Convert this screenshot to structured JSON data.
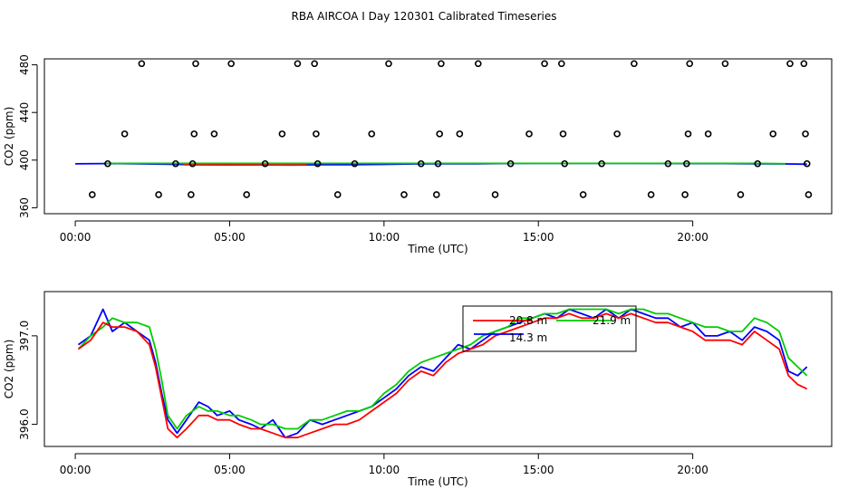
{
  "title": "RBA AIRCOA I  Day 120301  Calibrated Timeseries",
  "chart_data": [
    {
      "type": "scatter",
      "xlabel": "Time (UTC)",
      "ylabel": "CO2 (ppm)",
      "xlim": [
        -1,
        24.5
      ],
      "ylim": [
        355,
        485
      ],
      "x_ticks": [
        0,
        5,
        10,
        15,
        20
      ],
      "x_tick_labels": [
        "00:00",
        "05:00",
        "10:00",
        "15:00",
        "20:00"
      ],
      "y_ticks": [
        360,
        400,
        440,
        480
      ],
      "y_tick_labels": [
        "360",
        "400",
        "440",
        "480"
      ],
      "grid": false,
      "points": {
        "x": [
          0.55,
          1.05,
          1.6,
          2.15,
          2.7,
          3.25,
          3.75,
          3.8,
          3.85,
          3.9,
          4.5,
          5.05,
          5.55,
          6.15,
          6.7,
          7.2,
          7.75,
          7.8,
          7.85,
          8.5,
          9.05,
          9.6,
          10.15,
          10.65,
          11.2,
          11.7,
          11.75,
          11.8,
          11.85,
          12.45,
          13.05,
          13.6,
          14.1,
          14.7,
          15.2,
          15.75,
          15.8,
          15.85,
          16.45,
          17.05,
          17.55,
          18.1,
          18.65,
          19.2,
          19.75,
          19.8,
          19.85,
          19.9,
          20.5,
          21.05,
          21.55,
          22.1,
          22.6,
          23.15,
          23.6,
          23.65,
          23.7,
          23.75
        ],
        "y": [
          371,
          397,
          422,
          481,
          371,
          397,
          371,
          397,
          422,
          481,
          422,
          481,
          371,
          397,
          422,
          481,
          481,
          422,
          397,
          371,
          397,
          422,
          481,
          371,
          397,
          371,
          397,
          422,
          481,
          422,
          481,
          371,
          397,
          422,
          481,
          481,
          422,
          397,
          371,
          397,
          422,
          481,
          371,
          397,
          371,
          397,
          422,
          481,
          422,
          481,
          371,
          397,
          422,
          481,
          481,
          422,
          397,
          371
        ]
      },
      "series": [
        {
          "name": "",
          "color": "#0000ff",
          "x": [
            0,
            1,
            2,
            3,
            4,
            5,
            6,
            7,
            8,
            9,
            10,
            11,
            12,
            13,
            14,
            15,
            16,
            17,
            18,
            19,
            20,
            21,
            22,
            23,
            23.7
          ],
          "y": [
            396.9,
            397.1,
            397.0,
            396.6,
            396.2,
            396.0,
            396.0,
            395.9,
            396.1,
            396.2,
            396.4,
            396.8,
            397.0,
            397.0,
            397.2,
            397.3,
            397.3,
            397.3,
            397.3,
            397.2,
            397.1,
            397.1,
            397.0,
            396.8,
            396.6
          ]
        },
        {
          "name": "",
          "color": "#ff0000",
          "x": [
            3.5,
            4.5,
            6.5,
            7.5
          ],
          "y": [
            396.1,
            396.1,
            396.0,
            395.9
          ]
        },
        {
          "name": "",
          "color": "#00cc00",
          "x": [
            1.0,
            2.0,
            22.0,
            23.0
          ],
          "y": [
            397.2,
            397.3,
            397.3,
            397.0
          ]
        }
      ]
    },
    {
      "type": "line",
      "xlabel": "Time (UTC)",
      "ylabel": "CO2 (ppm)",
      "xlim": [
        -1,
        24.5
      ],
      "ylim": [
        395.75,
        397.5
      ],
      "x_ticks": [
        0,
        5,
        10,
        15,
        20
      ],
      "x_tick_labels": [
        "00:00",
        "05:00",
        "10:00",
        "15:00",
        "20:00"
      ],
      "y_ticks": [
        396.0,
        397.0
      ],
      "y_tick_labels": [
        "396.0",
        "397.0"
      ],
      "grid": false,
      "legend_position": "top-center",
      "series": [
        {
          "name": "14.3 m",
          "color": "#0000ff",
          "x": [
            0.1,
            0.5,
            0.9,
            1.2,
            1.6,
            2.0,
            2.4,
            2.6,
            2.8,
            3.0,
            3.3,
            3.6,
            4.0,
            4.3,
            4.6,
            5.0,
            5.3,
            5.7,
            6.0,
            6.4,
            6.8,
            7.2,
            7.6,
            8.0,
            8.4,
            8.8,
            9.2,
            9.6,
            10.0,
            10.4,
            10.8,
            11.2,
            11.6,
            12.0,
            12.4,
            12.8,
            13.2,
            13.6,
            14.0,
            14.4,
            14.8,
            15.2,
            15.6,
            16.0,
            16.4,
            16.8,
            17.2,
            17.6,
            18.0,
            18.4,
            18.8,
            19.2,
            19.6,
            20.0,
            20.4,
            20.8,
            21.2,
            21.6,
            22.0,
            22.4,
            22.8,
            23.1,
            23.4,
            23.7
          ],
          "y": [
            396.9,
            397.0,
            397.3,
            397.05,
            397.15,
            397.05,
            396.95,
            396.7,
            396.35,
            396.05,
            395.9,
            396.05,
            396.25,
            396.2,
            396.1,
            396.15,
            396.05,
            396.0,
            395.95,
            396.05,
            395.85,
            395.9,
            396.05,
            396.0,
            396.05,
            396.1,
            396.15,
            396.2,
            396.3,
            396.4,
            396.55,
            396.65,
            396.6,
            396.75,
            396.9,
            396.85,
            396.95,
            397.05,
            397.1,
            397.15,
            397.2,
            397.25,
            397.2,
            397.3,
            397.25,
            397.2,
            397.3,
            397.2,
            397.3,
            397.25,
            397.2,
            397.2,
            397.1,
            397.15,
            397.0,
            397.0,
            397.05,
            396.95,
            397.1,
            397.05,
            396.95,
            396.6,
            396.55,
            396.65
          ]
        },
        {
          "name": "21.9 m",
          "color": "#00cc00",
          "x": [
            0.1,
            0.5,
            0.9,
            1.2,
            1.6,
            2.0,
            2.4,
            2.6,
            2.8,
            3.0,
            3.3,
            3.6,
            4.0,
            4.3,
            4.6,
            5.0,
            5.3,
            5.7,
            6.0,
            6.4,
            6.8,
            7.2,
            7.6,
            8.0,
            8.4,
            8.8,
            9.2,
            9.6,
            10.0,
            10.4,
            10.8,
            11.2,
            11.6,
            12.0,
            12.4,
            12.8,
            13.2,
            13.6,
            14.0,
            14.4,
            14.8,
            15.2,
            15.6,
            16.0,
            16.4,
            16.8,
            17.2,
            17.6,
            18.0,
            18.4,
            18.8,
            19.2,
            19.6,
            20.0,
            20.4,
            20.8,
            21.2,
            21.6,
            22.0,
            22.4,
            22.8,
            23.1,
            23.4,
            23.7
          ],
          "y": [
            396.85,
            397.0,
            397.1,
            397.2,
            397.15,
            397.15,
            397.1,
            396.85,
            396.5,
            396.1,
            395.95,
            396.1,
            396.2,
            396.15,
            396.15,
            396.1,
            396.1,
            396.05,
            396.0,
            396.0,
            395.95,
            395.95,
            396.05,
            396.05,
            396.1,
            396.15,
            396.15,
            396.2,
            396.35,
            396.45,
            396.6,
            396.7,
            396.75,
            396.8,
            396.85,
            396.9,
            397.0,
            397.05,
            397.1,
            397.2,
            397.2,
            397.25,
            397.25,
            397.3,
            397.3,
            397.3,
            397.3,
            397.25,
            397.3,
            397.3,
            397.25,
            397.25,
            397.2,
            397.15,
            397.1,
            397.1,
            397.05,
            397.05,
            397.2,
            397.15,
            397.05,
            396.75,
            396.65,
            396.55
          ]
        },
        {
          "name": "20.8 m",
          "color": "#ff0000",
          "x": [
            0.1,
            0.5,
            0.9,
            1.2,
            1.6,
            2.0,
            2.4,
            2.6,
            2.8,
            3.0,
            3.3,
            3.6,
            4.0,
            4.3,
            4.6,
            5.0,
            5.3,
            5.7,
            6.0,
            6.4,
            6.8,
            7.2,
            7.6,
            8.0,
            8.4,
            8.8,
            9.2,
            9.6,
            10.0,
            10.4,
            10.8,
            11.2,
            11.6,
            12.0,
            12.4,
            12.8,
            13.2,
            13.6,
            14.0,
            14.4,
            14.8,
            15.2,
            15.6,
            16.0,
            16.4,
            16.8,
            17.2,
            17.6,
            18.0,
            18.4,
            18.8,
            19.2,
            19.6,
            20.0,
            20.4,
            20.8,
            21.2,
            21.6,
            22.0,
            22.4,
            22.8,
            23.1,
            23.4,
            23.7
          ],
          "y": [
            396.85,
            396.95,
            397.15,
            397.1,
            397.1,
            397.05,
            396.9,
            396.65,
            396.3,
            395.95,
            395.85,
            395.95,
            396.1,
            396.1,
            396.05,
            396.05,
            396.0,
            395.95,
            395.95,
            395.9,
            395.85,
            395.85,
            395.9,
            395.95,
            396.0,
            396.0,
            396.05,
            396.15,
            396.25,
            396.35,
            396.5,
            396.6,
            396.55,
            396.7,
            396.8,
            396.85,
            396.9,
            397.0,
            397.05,
            397.1,
            397.15,
            397.2,
            397.2,
            397.25,
            397.2,
            397.2,
            397.25,
            397.2,
            397.25,
            397.2,
            397.15,
            397.15,
            397.1,
            397.05,
            396.95,
            396.95,
            396.95,
            396.9,
            397.05,
            396.95,
            396.85,
            396.55,
            396.45,
            396.4
          ]
        }
      ]
    }
  ]
}
